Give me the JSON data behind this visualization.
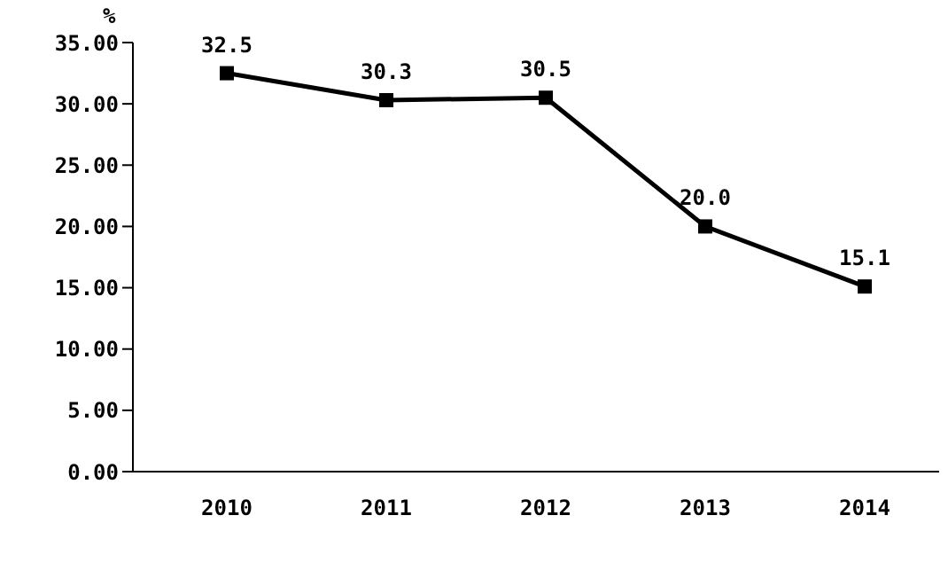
{
  "chart_data": {
    "type": "line",
    "ylabel": "%",
    "categories": [
      "2010",
      "2011",
      "2012",
      "2013",
      "2014"
    ],
    "series": [
      {
        "color": "#000000",
        "values": [
          32.5,
          30.3,
          30.5,
          20.0,
          15.1
        ]
      }
    ],
    "value_labels": [
      "32.5",
      "30.3",
      "30.5",
      "20.0",
      "15.1"
    ],
    "ylim": [
      0,
      35
    ],
    "yticks": [
      {
        "value": 0,
        "label": "0.00"
      },
      {
        "value": 5,
        "label": "5.00"
      },
      {
        "value": 10,
        "label": "10.00"
      },
      {
        "value": 15,
        "label": "15.00"
      },
      {
        "value": 20,
        "label": "20.00"
      },
      {
        "value": 25,
        "label": "25.00"
      },
      {
        "value": 30,
        "label": "30.00"
      },
      {
        "value": 35,
        "label": "35.00"
      }
    ],
    "grid": false,
    "legend": false,
    "marker": "square",
    "line_style": "solid"
  }
}
